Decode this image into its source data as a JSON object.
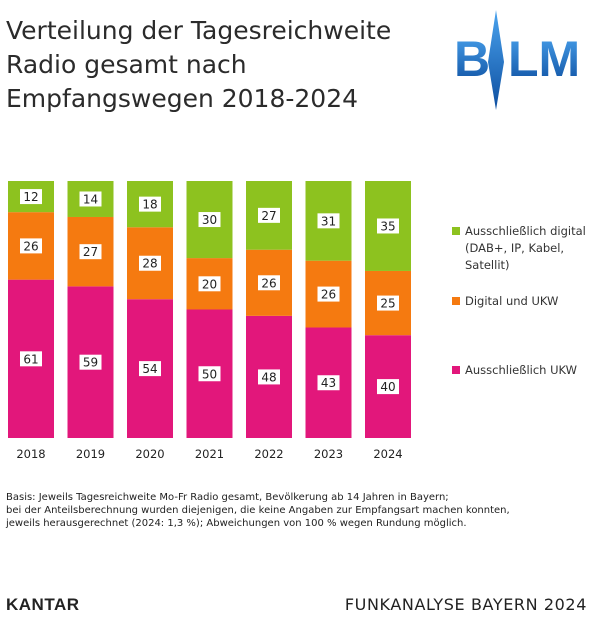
{
  "title_lines": [
    "Verteilung der Tagesreichweite",
    "Radio gesamt nach",
    "Empfangswegen 2018-2024"
  ],
  "logo": {
    "text_left": "B",
    "text_right": "LM",
    "primary_color": "#1c6fc9"
  },
  "chart_data": {
    "type": "bar",
    "stacked": true,
    "categories": [
      "2018",
      "2019",
      "2020",
      "2021",
      "2022",
      "2023",
      "2024"
    ],
    "series": [
      {
        "name": "Ausschließlich UKW",
        "color": "#e2177b",
        "values": [
          61,
          59,
          54,
          50,
          48,
          43,
          40
        ]
      },
      {
        "name": "Digital und UKW",
        "color": "#f57a10",
        "values": [
          26,
          27,
          28,
          20,
          26,
          26,
          25
        ]
      },
      {
        "name": "Ausschließlich digital\n(DAB+, IP, Kabel,\nSatellit)",
        "color": "#8dc21f",
        "values": [
          12,
          14,
          18,
          30,
          27,
          31,
          35
        ]
      }
    ],
    "ylim": [
      0,
      100
    ],
    "grid": false,
    "legend_position": "right"
  },
  "footnote_lines": [
    "Basis: Jeweils Tagesreichweite Mo-Fr Radio gesamt, Bevölkerung ab 14 Jahren in Bayern;",
    "bei der Anteilsberechnung wurden diejenigen, die keine Angaben zur Empfangsart machen konnten,",
    "jeweils herausgerechnet (2024: 1,3 %); Abweichungen von 100 % wegen Rundung möglich."
  ],
  "brand_left": "KANTAR",
  "brand_right": "FUNKANALYSE BAYERN 2024"
}
